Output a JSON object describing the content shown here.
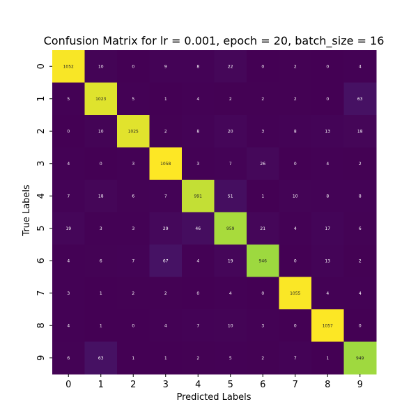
{
  "chart_data": {
    "type": "heatmap",
    "title": "Confusion Matrix for lr = 0.001, epoch = 20, batch_size = 16",
    "xlabel": "Predicted Labels",
    "ylabel": "True Labels",
    "x_categories": [
      "0",
      "1",
      "2",
      "3",
      "4",
      "5",
      "6",
      "7",
      "8",
      "9"
    ],
    "y_categories": [
      "0",
      "1",
      "2",
      "3",
      "4",
      "5",
      "6",
      "7",
      "8",
      "9"
    ],
    "colormap": "viridis",
    "colorbar": false,
    "annotations": true,
    "values": [
      [
        1052,
        10,
        0,
        9,
        8,
        22,
        0,
        2,
        0,
        4
      ],
      [
        5,
        1023,
        5,
        1,
        4,
        2,
        2,
        2,
        0,
        63
      ],
      [
        0,
        10,
        1025,
        2,
        8,
        20,
        3,
        8,
        13,
        18
      ],
      [
        4,
        0,
        3,
        1058,
        3,
        7,
        26,
        0,
        4,
        2
      ],
      [
        7,
        18,
        6,
        7,
        991,
        51,
        1,
        10,
        8,
        8
      ],
      [
        19,
        3,
        3,
        29,
        46,
        959,
        21,
        4,
        17,
        6
      ],
      [
        4,
        6,
        7,
        67,
        4,
        19,
        946,
        0,
        13,
        2
      ],
      [
        3,
        1,
        2,
        2,
        0,
        4,
        0,
        1055,
        4,
        4
      ],
      [
        4,
        1,
        0,
        4,
        7,
        10,
        3,
        0,
        1057,
        0
      ],
      [
        6,
        63,
        1,
        1,
        2,
        5,
        2,
        7,
        1,
        949
      ]
    ]
  }
}
